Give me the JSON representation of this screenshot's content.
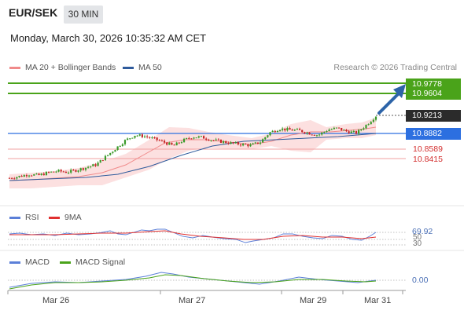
{
  "header": {
    "pair": "EUR/SEK",
    "timeframe": "30 MIN",
    "datetime": "Monday, March 30, 2026 10:35:32 AM CET"
  },
  "legend": {
    "bollinger_label": "MA 20 + Bollinger Bands",
    "ma50_label": "MA 50",
    "credit": "Research © 2026 Trading Central"
  },
  "colors": {
    "green_level": "#4aa31a",
    "current_price": "#2b2b2b",
    "blue_level": "#2c6fe0",
    "red_level": "#e05555",
    "arrow": "#2d64a8",
    "rsi": "#5b7fd8",
    "rsi_ma": "#e03030",
    "macd": "#5b7fd8",
    "macd_signal": "#4aa31a"
  },
  "price_levels": {
    "r2": "10.9778",
    "r1": "10.9604",
    "current": "10.9213",
    "pivot": "10.8882",
    "s1": "10.8589",
    "s2": "10.8415"
  },
  "rsi_panel": {
    "label": "RSI",
    "ma_label": "9MA",
    "value": "69.92",
    "level_high": "50",
    "level_low": "30"
  },
  "macd_panel": {
    "label": "MACD",
    "signal_label": "MACD Signal",
    "value": "0.00"
  },
  "x_axis": [
    "Mar 26",
    "Mar 27",
    "Mar 29",
    "Mar 31"
  ],
  "chart_data": {
    "type": "candlestick",
    "series": [
      {
        "name": "MA 20 + Bollinger Bands"
      },
      {
        "name": "MA 50"
      }
    ],
    "xticks": [
      "Mar 26",
      "Mar 27",
      "Mar 29",
      "Mar 31"
    ],
    "levels": [
      10.9778,
      10.9604,
      10.9213,
      10.8882,
      10.8589,
      10.8415
    ],
    "close_path": [
      10.805,
      10.808,
      10.812,
      10.81,
      10.815,
      10.818,
      10.816,
      10.82,
      10.825,
      10.83,
      10.845,
      10.86,
      10.875,
      10.885,
      10.883,
      10.878,
      10.872,
      10.865,
      10.875,
      10.882,
      10.881,
      10.876,
      10.873,
      10.87,
      10.868,
      10.866,
      10.872,
      10.89,
      10.897,
      10.895,
      10.894,
      10.889,
      10.885,
      10.895,
      10.898,
      10.892,
      10.889,
      10.904,
      10.921
    ],
    "rsi_last": 69.92,
    "macd_last": 0.0
  }
}
